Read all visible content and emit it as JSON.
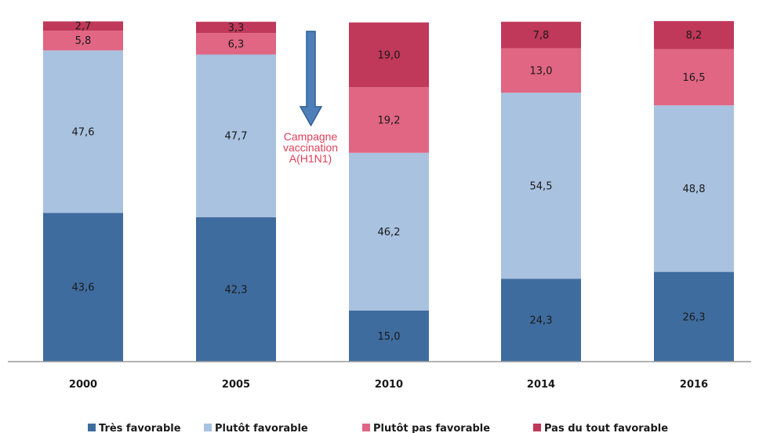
{
  "chart_data": {
    "type": "bar",
    "stacked": true,
    "categories": [
      "2000",
      "2005",
      "2010",
      "2014",
      "2016"
    ],
    "ylim": [
      0,
      100
    ],
    "grid": false,
    "legend_position": "bottom",
    "series": [
      {
        "name": "Très favorable",
        "color": "#3f6c9e",
        "values": [
          43.6,
          42.3,
          15.0,
          24.3,
          26.3
        ],
        "labels": [
          "43,6",
          "42,3",
          "15,0",
          "24,3",
          "26,3"
        ]
      },
      {
        "name": "Plutôt favorable",
        "color": "#a9c2e0",
        "values": [
          47.6,
          47.7,
          46.2,
          54.5,
          48.8
        ],
        "labels": [
          "47,6",
          "47,7",
          "46,2",
          "54,5",
          "48,8"
        ]
      },
      {
        "name": "Plutôt pas favorable",
        "color": "#e06683",
        "values": [
          5.8,
          6.3,
          19.2,
          13.0,
          16.5
        ],
        "labels": [
          "5,8",
          "6,3",
          "19,2",
          "13,0",
          "16,5"
        ]
      },
      {
        "name": "Pas du tout favorable",
        "color": "#c0385a",
        "values": [
          2.7,
          3.3,
          19.0,
          7.8,
          8.2
        ],
        "labels": [
          "2,7",
          "3,3",
          "19,0",
          "7,8",
          "8,2"
        ]
      }
    ],
    "annotation": {
      "lines": [
        "Campagne",
        "vaccination",
        "A(H1N1)"
      ],
      "arrow": "down",
      "color": "#e0405a",
      "arrow_color": "#4f7fb8"
    }
  }
}
